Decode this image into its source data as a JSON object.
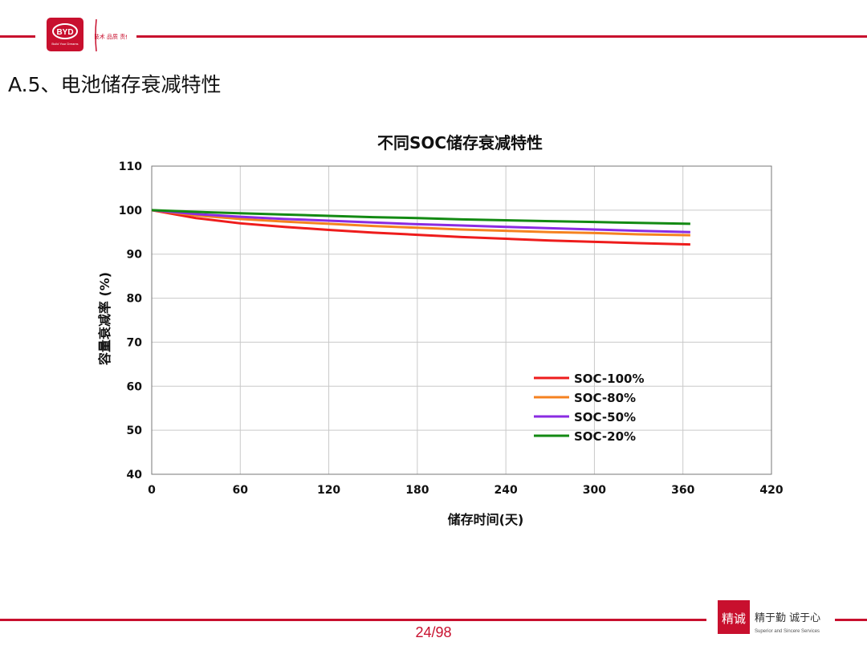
{
  "header": {
    "byd_logo_text": "BYD",
    "byd_logo_slogan": "Build Your Dreams",
    "seal_text": "技术 品质 责任"
  },
  "slide": {
    "title": "A.5、电池储存衰减特性",
    "page_number": "24/98"
  },
  "footer": {
    "seal_glyphs": "精诚",
    "slogan": "精于勤 诚于心",
    "sub_slogan": "Superior and Sincere Services"
  },
  "colors": {
    "brand_red": "#c8102e",
    "soc100": "#ee1c1c",
    "soc80": "#f58220",
    "soc50": "#8a2be2",
    "soc20": "#138a13"
  },
  "chart_data": {
    "type": "line",
    "title": "不同SOC储存衰减特性",
    "xlabel": "储存时间(天)",
    "ylabel": "容量衰减率 (%)",
    "xlim": [
      0,
      420
    ],
    "ylim": [
      40,
      110
    ],
    "xticks": [
      0,
      60,
      120,
      180,
      240,
      300,
      360,
      420
    ],
    "yticks": [
      40,
      50,
      60,
      70,
      80,
      90,
      100,
      110
    ],
    "grid": true,
    "legend_position": "lower-right",
    "x": [
      0,
      30,
      60,
      90,
      120,
      150,
      180,
      210,
      240,
      270,
      300,
      330,
      365
    ],
    "series": [
      {
        "name": "SOC-100%",
        "color": "#ee1c1c",
        "values": [
          100,
          98.2,
          97.0,
          96.2,
          95.5,
          94.9,
          94.4,
          93.9,
          93.5,
          93.1,
          92.8,
          92.5,
          92.2
        ]
      },
      {
        "name": "SOC-80%",
        "color": "#f58220",
        "values": [
          100,
          98.8,
          98.0,
          97.4,
          96.9,
          96.4,
          96.0,
          95.6,
          95.3,
          95.0,
          94.8,
          94.5,
          94.3
        ]
      },
      {
        "name": "SOC-50%",
        "color": "#8a2be2",
        "values": [
          100,
          99.1,
          98.5,
          98.0,
          97.6,
          97.2,
          96.8,
          96.5,
          96.2,
          95.9,
          95.6,
          95.3,
          95.0
        ]
      },
      {
        "name": "SOC-20%",
        "color": "#138a13",
        "values": [
          100,
          99.6,
          99.3,
          99.0,
          98.7,
          98.4,
          98.2,
          97.9,
          97.7,
          97.5,
          97.3,
          97.1,
          96.9
        ]
      }
    ]
  }
}
